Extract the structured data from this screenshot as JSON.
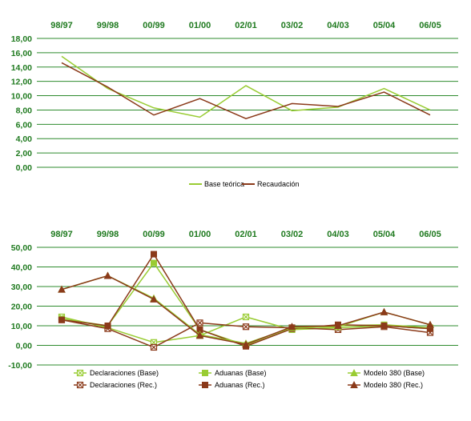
{
  "chart_data": [
    {
      "type": "line",
      "categories": [
        "98/97",
        "99/98",
        "00/99",
        "01/00",
        "02/01",
        "03/02",
        "04/03",
        "05/04",
        "06/05"
      ],
      "ylim": [
        0,
        18
      ],
      "ytick_labels": [
        "0,00",
        "2,00",
        "4,00",
        "6,00",
        "8,00",
        "10,00",
        "12,00",
        "14,00",
        "16,00",
        "18,00"
      ],
      "grid": true,
      "legend_position": "bottom",
      "series": [
        {
          "name": "Base teórica",
          "color": "#99cc33",
          "marker": "none",
          "values": [
            15.5,
            11.0,
            8.3,
            7.0,
            11.4,
            7.9,
            8.4,
            11.0,
            8.0
          ]
        },
        {
          "name": "Recaudación",
          "color": "#8b3a1a",
          "marker": "none",
          "values": [
            14.6,
            11.2,
            7.3,
            9.6,
            6.8,
            8.9,
            8.5,
            10.5,
            7.3
          ]
        }
      ]
    },
    {
      "type": "line",
      "categories": [
        "98/97",
        "99/98",
        "00/99",
        "01/00",
        "02/01",
        "03/02",
        "04/03",
        "05/04",
        "06/05"
      ],
      "ylim": [
        -10,
        50
      ],
      "ytick_labels": [
        "-10,00",
        "0,00",
        "10,00",
        "20,00",
        "30,00",
        "40,00",
        "50,00"
      ],
      "grid": true,
      "legend_position": "bottom",
      "series": [
        {
          "name": "Declaraciones (Base)",
          "color": "#99cc33",
          "marker": "x-square",
          "values": [
            14.5,
            9.0,
            1.5,
            5.0,
            14.5,
            8.0,
            9.0,
            10.0,
            8.5
          ]
        },
        {
          "name": "Declaraciones (Rec.)",
          "color": "#8b3a1a",
          "marker": "x-square",
          "values": [
            13.0,
            8.5,
            -1.0,
            11.5,
            9.5,
            9.0,
            8.0,
            9.5,
            6.5
          ]
        },
        {
          "name": "Aduanas (Base)",
          "color": "#99cc33",
          "marker": "square",
          "values": [
            13.5,
            10.0,
            42.0,
            8.0,
            0.0,
            8.5,
            10.0,
            10.5,
            9.0
          ]
        },
        {
          "name": "Aduanas (Rec.)",
          "color": "#8b3a1a",
          "marker": "square",
          "values": [
            13.0,
            10.0,
            46.5,
            8.0,
            -0.5,
            8.5,
            10.5,
            10.0,
            8.5
          ]
        },
        {
          "name": "Modelo 380 (Base)",
          "color": "#99cc33",
          "marker": "triangle",
          "values": [
            28.5,
            35.5,
            24.0,
            5.5,
            1.0,
            9.0,
            9.5,
            17.0,
            10.5
          ]
        },
        {
          "name": "Modelo 380 (Rec.)",
          "color": "#8b3a1a",
          "marker": "triangle",
          "values": [
            28.5,
            35.5,
            23.5,
            5.0,
            0.5,
            9.5,
            10.0,
            17.0,
            10.5
          ]
        }
      ]
    }
  ]
}
